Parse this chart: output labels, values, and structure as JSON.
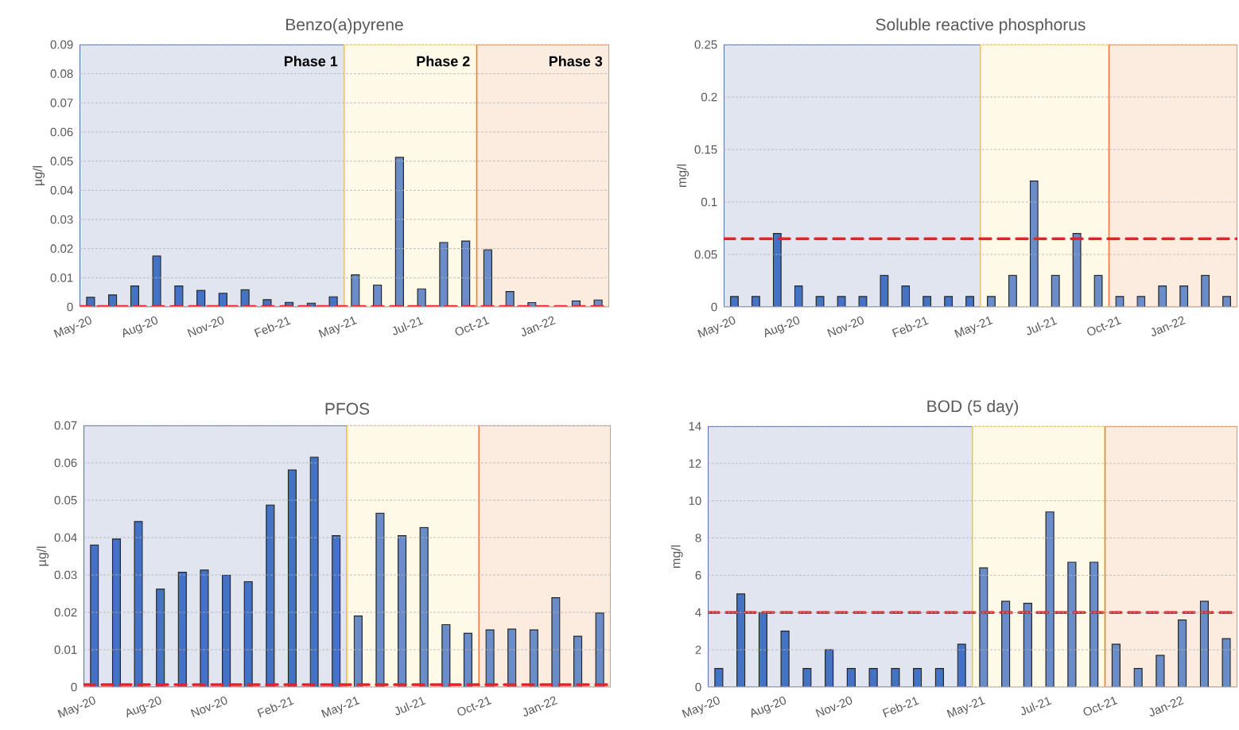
{
  "chart_data": [
    {
      "type": "bar",
      "title": "Benzo(a)pyrene",
      "ylabel": "µg/l",
      "categories": [
        "May-20",
        null,
        null,
        "Aug-20",
        null,
        null,
        "Nov-20",
        null,
        null,
        "Feb-21",
        null,
        null,
        "May-21",
        null,
        null,
        "Jul-21",
        null,
        null,
        "Oct-21",
        null,
        null,
        "Jan-22",
        null,
        null
      ],
      "values": [
        0.0033,
        0.0041,
        0.0072,
        0.0175,
        0.0072,
        0.0057,
        0.0047,
        0.0059,
        0.0025,
        0.0016,
        0.0013,
        0.0035,
        0.011,
        0.0075,
        0.0513,
        0.0062,
        0.0221,
        0.0226,
        0.0196,
        0.0053,
        0.0015,
        null,
        0.0021,
        0.0024
      ],
      "colors": [
        "#4472c4",
        "#4472c4",
        "#4472c4",
        "#4472c4",
        "#4472c4",
        "#4472c4",
        "#4472c4",
        "#4472c4",
        "#4472c4",
        "#4472c4",
        "#4472c4",
        "#4472c4",
        "#6a8cc8",
        "#6a8cc8",
        "#6a8cc8",
        "#6a8cc8",
        "#6a8cc8",
        "#6a8cc8",
        "#6a8cc8",
        "#6a8cc8",
        "#6a8cc8",
        "#6a8cc8",
        "#6a8cc8",
        "#6a8cc8"
      ],
      "ylim": [
        0,
        0.09
      ],
      "yticks": [
        0,
        0.01,
        0.02,
        0.03,
        0.04,
        0.05,
        0.06,
        0.07,
        0.08,
        0.09
      ],
      "grid": "y",
      "ref_lines": [
        {
          "axis": "y",
          "value": 0.0002,
          "color": "#e8202a",
          "line_style": "dashed"
        }
      ],
      "annotations": [
        "Phase 1",
        "Phase 2",
        "Phase 3"
      ]
    },
    {
      "type": "bar",
      "title": "Soluble reactive phosphorus",
      "ylabel": "mg/l",
      "categories": [
        "May-20",
        null,
        null,
        "Aug-20",
        null,
        null,
        "Nov-20",
        null,
        null,
        "Feb-21",
        null,
        null,
        "May-21",
        null,
        null,
        "Jul-21",
        null,
        null,
        "Oct-21",
        null,
        null,
        "Jan-22",
        null,
        null
      ],
      "values": [
        0.01,
        0.01,
        0.07,
        0.02,
        0.01,
        0.01,
        0.01,
        0.03,
        0.02,
        0.01,
        0.01,
        0.01,
        0.01,
        0.03,
        0.12,
        0.03,
        0.07,
        0.03,
        0.01,
        0.01,
        0.02,
        0.02,
        0.03,
        0.01
      ],
      "colors": [
        "#4472c4",
        "#4472c4",
        "#4472c4",
        "#4472c4",
        "#4472c4",
        "#4472c4",
        "#4472c4",
        "#4472c4",
        "#4472c4",
        "#4472c4",
        "#4472c4",
        "#4472c4",
        "#6a8cc8",
        "#6a8cc8",
        "#6a8cc8",
        "#6a8cc8",
        "#6a8cc8",
        "#6a8cc8",
        "#6a8cc8",
        "#6a8cc8",
        "#6a8cc8",
        "#6a8cc8",
        "#6a8cc8",
        "#6a8cc8"
      ],
      "ylim": [
        0,
        0.25
      ],
      "yticks": [
        0,
        0.05,
        0.1,
        0.15,
        0.2,
        0.25
      ],
      "grid": "y",
      "ref_lines": [
        {
          "axis": "y",
          "value": 0.065,
          "color": "#e8202a",
          "line_style": "dashed"
        }
      ]
    },
    {
      "type": "bar",
      "title": "PFOS",
      "ylabel": "µg/l",
      "categories": [
        "May-20",
        null,
        null,
        "Aug-20",
        null,
        null,
        "Nov-20",
        null,
        null,
        "Feb-21",
        null,
        null,
        "May-21",
        null,
        null,
        "Jul-21",
        null,
        null,
        "Oct-21",
        null,
        null,
        "Jan-22",
        null,
        null
      ],
      "values": [
        0.038,
        0.0396,
        0.0443,
        0.0262,
        0.0307,
        0.0313,
        0.0299,
        0.0282,
        0.0487,
        0.0581,
        0.0615,
        0.0405,
        0.019,
        0.0465,
        0.0405,
        0.0427,
        0.0167,
        0.0144,
        0.0153,
        0.0155,
        0.0153,
        0.0239,
        0.0136,
        0.0198
      ],
      "colors": [
        "#4472c4",
        "#4472c4",
        "#4472c4",
        "#4472c4",
        "#4472c4",
        "#4472c4",
        "#4472c4",
        "#4472c4",
        "#4472c4",
        "#4472c4",
        "#4472c4",
        "#4472c4",
        "#6a8cc8",
        "#6a8cc8",
        "#6a8cc8",
        "#6a8cc8",
        "#6a8cc8",
        "#6a8cc8",
        "#6a8cc8",
        "#6a8cc8",
        "#6a8cc8",
        "#6a8cc8",
        "#6a8cc8",
        "#6a8cc8"
      ],
      "ylim": [
        0,
        0.07
      ],
      "yticks": [
        0,
        0.01,
        0.02,
        0.03,
        0.04,
        0.05,
        0.06,
        0.07
      ],
      "grid": "y",
      "ref_lines": [
        {
          "axis": "y",
          "value": 0.00065,
          "color": "#e8202a",
          "line_style": "dashed"
        }
      ]
    },
    {
      "type": "bar",
      "title": "BOD (5 day)",
      "ylabel": "mg/l",
      "categories": [
        "May-20",
        null,
        null,
        "Aug-20",
        null,
        null,
        "Nov-20",
        null,
        null,
        "Feb-21",
        null,
        null,
        "May-21",
        null,
        null,
        "Jul-21",
        null,
        null,
        "Oct-21",
        null,
        null,
        "Jan-22",
        null,
        null
      ],
      "values": [
        1,
        5,
        4,
        3,
        1,
        2,
        1,
        1,
        1,
        1,
        1,
        2.3,
        6.4,
        4.6,
        4.5,
        9.4,
        6.7,
        6.7,
        2.3,
        1,
        1.7,
        3.6,
        4.6,
        2.6
      ],
      "colors": [
        "#4472c4",
        "#4472c4",
        "#4472c4",
        "#4472c4",
        "#4472c4",
        "#4472c4",
        "#4472c4",
        "#4472c4",
        "#4472c4",
        "#4472c4",
        "#4472c4",
        "#4472c4",
        "#6a8cc8",
        "#6a8cc8",
        "#6a8cc8",
        "#6a8cc8",
        "#6a8cc8",
        "#6a8cc8",
        "#6a8cc8",
        "#6a8cc8",
        "#6a8cc8",
        "#6a8cc8",
        "#6a8cc8",
        "#6a8cc8"
      ],
      "ylim": [
        0,
        14
      ],
      "yticks": [
        0,
        2,
        4,
        6,
        8,
        10,
        12,
        14
      ],
      "grid": "y",
      "ref_lines": [
        {
          "axis": "y",
          "value": 4,
          "color": "#e8202a",
          "line_style": "dashed"
        }
      ]
    }
  ]
}
